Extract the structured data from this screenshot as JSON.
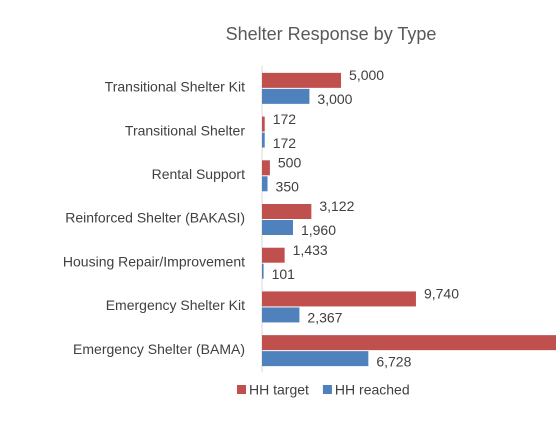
{
  "chart_data": {
    "type": "hbar",
    "title": "Shelter Response by Type",
    "categories": [
      "Transitional Shelter Kit",
      "Transitional Shelter",
      "Rental Support",
      "Reinforced Shelter (BAKASI)",
      "Housing Repair/Improvement",
      "Emergency Shelter Kit",
      "Emergency Shelter (BAMA)"
    ],
    "series": [
      {
        "name": "HH target",
        "color": "#c0504d",
        "values": [
          5000,
          172,
          500,
          3122,
          1433,
          9740,
          18600
        ],
        "value_labels": [
          "5,000",
          "172",
          "500",
          "3,122",
          "1,433",
          "9,740",
          null
        ]
      },
      {
        "name": "HH reached",
        "color": "#4f81bd",
        "values": [
          3000,
          172,
          350,
          1960,
          101,
          2367,
          6728
        ],
        "value_labels": [
          "3,000",
          "172",
          "350",
          "1,960",
          "101",
          "2,367",
          "6,728"
        ]
      }
    ],
    "xlim": [
      0,
      18600
    ],
    "legend": "bottom"
  }
}
